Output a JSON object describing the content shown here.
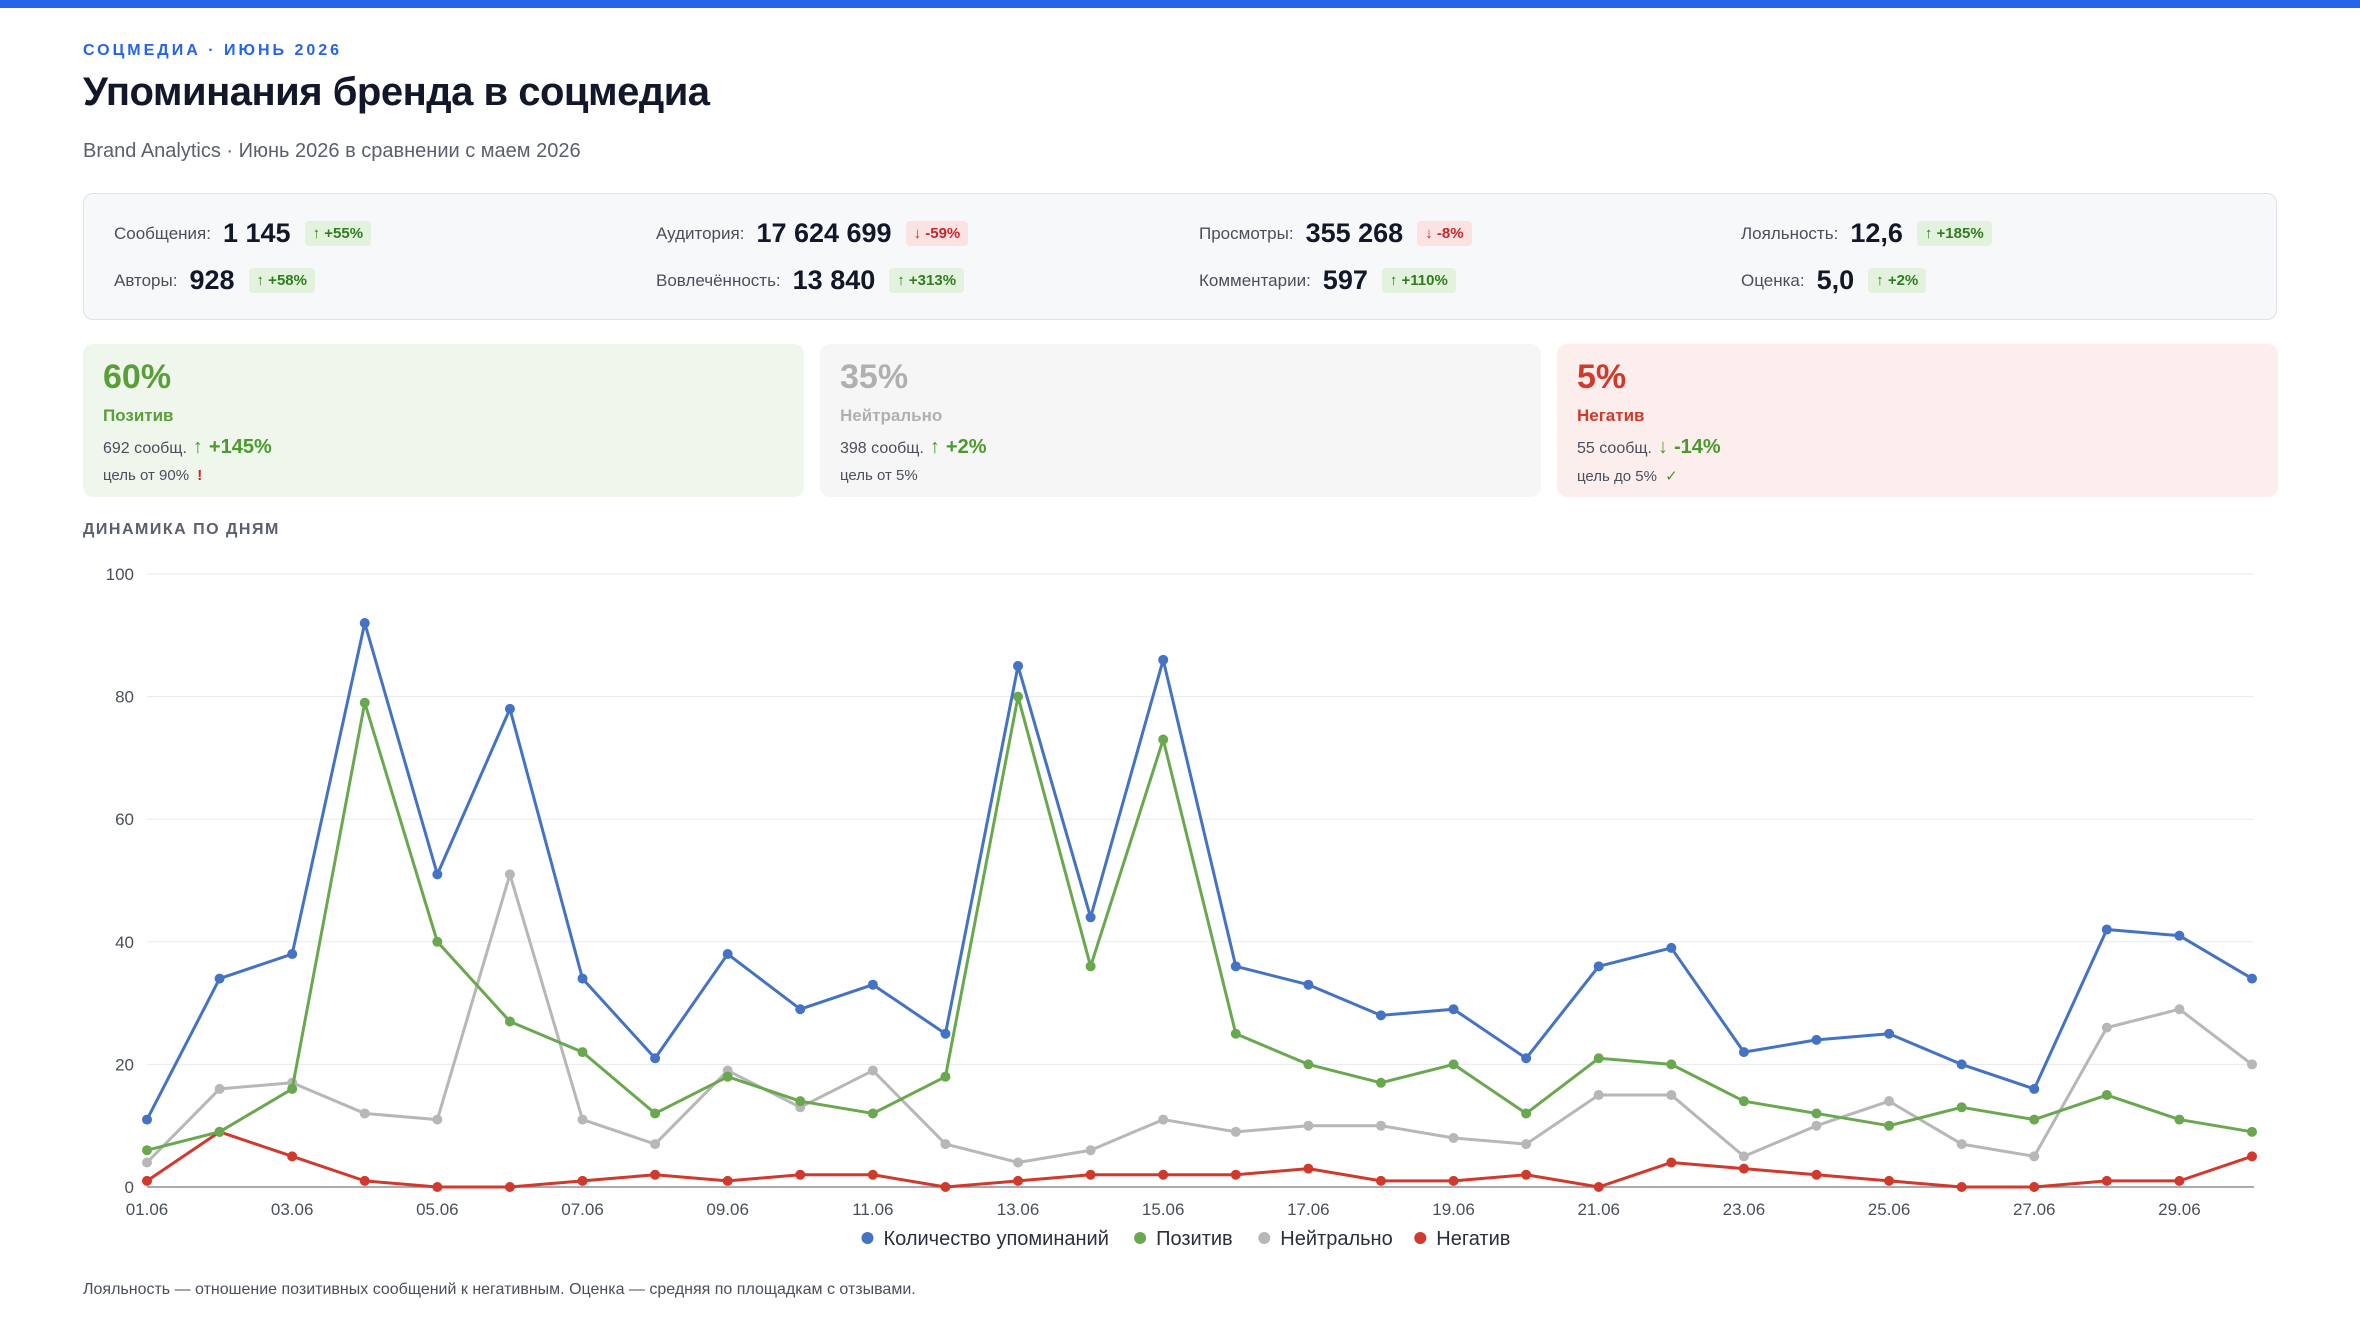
{
  "header": {
    "eyebrow": "СОЦМЕДИА · ИЮНЬ 2026",
    "title": "Упоминания бренда в соцмедиа",
    "subtitle": "Brand Analytics · Июнь 2026 в сравнении с маем 2026"
  },
  "stats": [
    {
      "label": "Сообщения:",
      "value": "1 145",
      "delta": "↑ +55%",
      "trend": "up"
    },
    {
      "label": "Аудитория:",
      "value": "17 624 699",
      "delta": "↓ -59%",
      "trend": "down"
    },
    {
      "label": "Просмотры:",
      "value": "355 268",
      "delta": "↓ -8%",
      "trend": "down"
    },
    {
      "label": "Лояльность:",
      "value": "12,6",
      "delta": "↑ +185%",
      "trend": "up"
    },
    {
      "label": "Авторы:",
      "value": "928",
      "delta": "↑ +58%",
      "trend": "up"
    },
    {
      "label": "Вовлечённость:",
      "value": "13 840",
      "delta": "↑ +313%",
      "trend": "up"
    },
    {
      "label": "Комментарии:",
      "value": "597",
      "delta": "↑ +110%",
      "trend": "up"
    },
    {
      "label": "Оценка:",
      "value": "5,0",
      "delta": "↑ +2%",
      "trend": "up"
    }
  ],
  "tones": {
    "positive": {
      "pct": "60%",
      "name": "Позитив",
      "count": "692 сообщ.",
      "arrow": "↑",
      "delta": "+145%",
      "goal": "цель от 90%",
      "mark": "!",
      "color": "#5a9e3a",
      "delta_color": "#4a9a2c",
      "mark_color": "#c62828"
    },
    "neutral": {
      "pct": "35%",
      "name": "Нейтрально",
      "count": "398 сообщ.",
      "arrow": "↑",
      "delta": "+2%",
      "goal": "цель от 5%",
      "mark": "",
      "color": "#b0b0b0",
      "delta_color": "#4a9a2c",
      "mark_color": "#4a9a2c"
    },
    "negative": {
      "pct": "5%",
      "name": "Негатив",
      "count": "55 сообщ.",
      "arrow": "↓",
      "delta": "-14%",
      "goal": "цель до 5%",
      "mark": "✓",
      "color": "#d0392b",
      "delta_color": "#4a9a2c",
      "mark_color": "#4a9a2c"
    }
  },
  "section_label": "ДИНАМИКА ПО ДНЯМ",
  "footnote": "Лояльность — отношение позитивных сообщений к негативным. Оценка — средняя по площадкам с отзывами.",
  "chart_data": {
    "type": "line",
    "x": [
      "01.06",
      "02.06",
      "03.06",
      "04.06",
      "05.06",
      "06.06",
      "07.06",
      "08.06",
      "09.06",
      "10.06",
      "11.06",
      "12.06",
      "13.06",
      "14.06",
      "15.06",
      "16.06",
      "17.06",
      "18.06",
      "19.06",
      "20.06",
      "21.06",
      "22.06",
      "23.06",
      "24.06",
      "25.06",
      "26.06",
      "27.06",
      "28.06",
      "29.06",
      "30.06"
    ],
    "x_tick_labels": [
      "01.06",
      "03.06",
      "05.06",
      "07.06",
      "09.06",
      "11.06",
      "13.06",
      "15.06",
      "17.06",
      "19.06",
      "21.06",
      "23.06",
      "25.06",
      "27.06",
      "29.06"
    ],
    "ylim": [
      0,
      100
    ],
    "y_ticks": [
      0,
      20,
      40,
      60,
      80,
      100
    ],
    "grid": true,
    "legend_position": "bottom",
    "series": [
      {
        "name": "Количество упоминаний",
        "color": "#4472c4",
        "values": [
          11,
          34,
          38,
          92,
          51,
          78,
          34,
          21,
          38,
          29,
          33,
          25,
          85,
          44,
          86,
          36,
          33,
          28,
          29,
          21,
          36,
          39,
          22,
          24,
          25,
          20,
          16,
          42,
          41,
          34
        ]
      },
      {
        "name": "Позитив",
        "color": "#6aa84f",
        "values": [
          6,
          9,
          16,
          79,
          40,
          27,
          22,
          12,
          18,
          14,
          12,
          18,
          80,
          36,
          73,
          25,
          20,
          17,
          20,
          12,
          21,
          20,
          14,
          12,
          10,
          13,
          11,
          15,
          11,
          9
        ]
      },
      {
        "name": "Нейтрально",
        "color": "#b7b7b7",
        "values": [
          4,
          16,
          17,
          12,
          11,
          51,
          11,
          7,
          19,
          13,
          19,
          7,
          4,
          6,
          11,
          9,
          10,
          10,
          8,
          7,
          15,
          15,
          5,
          10,
          14,
          7,
          5,
          26,
          29,
          20
        ]
      },
      {
        "name": "Негатив",
        "color": "#d0392b",
        "values": [
          1,
          9,
          5,
          1,
          0,
          0,
          1,
          2,
          1,
          2,
          2,
          0,
          1,
          2,
          2,
          2,
          3,
          1,
          1,
          2,
          0,
          4,
          3,
          2,
          1,
          0,
          0,
          1,
          1,
          5
        ]
      }
    ]
  }
}
